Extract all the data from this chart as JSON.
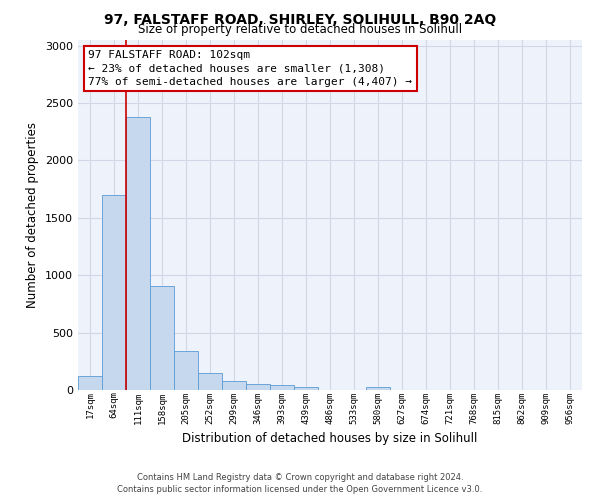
{
  "title": "97, FALSTAFF ROAD, SHIRLEY, SOLIHULL, B90 2AQ",
  "subtitle": "Size of property relative to detached houses in Solihull",
  "xlabel": "Distribution of detached houses by size in Solihull",
  "ylabel": "Number of detached properties",
  "bar_color": "#c5d8ed",
  "bar_edge_color": "#5b9bd5",
  "categories": [
    "17sqm",
    "64sqm",
    "111sqm",
    "158sqm",
    "205sqm",
    "252sqm",
    "299sqm",
    "346sqm",
    "393sqm",
    "439sqm",
    "486sqm",
    "533sqm",
    "580sqm",
    "627sqm",
    "674sqm",
    "721sqm",
    "768sqm",
    "815sqm",
    "862sqm",
    "909sqm",
    "956sqm"
  ],
  "values": [
    120,
    1700,
    2380,
    910,
    340,
    150,
    80,
    50,
    40,
    30,
    0,
    0,
    30,
    0,
    0,
    0,
    0,
    0,
    0,
    0,
    0
  ],
  "ylim": [
    0,
    3050
  ],
  "yticks": [
    0,
    500,
    1000,
    1500,
    2000,
    2500,
    3000
  ],
  "red_line_x": 1.5,
  "annotation_text": "97 FALSTAFF ROAD: 102sqm\n← 23% of detached houses are smaller (1,308)\n77% of semi-detached houses are larger (4,407) →",
  "annotation_box_edge_color": "#cc0000",
  "background_color": "#eef2fa",
  "grid_color": "#d0d8e8",
  "footer_line1": "Contains HM Land Registry data © Crown copyright and database right 2024.",
  "footer_line2": "Contains public sector information licensed under the Open Government Licence v3.0."
}
